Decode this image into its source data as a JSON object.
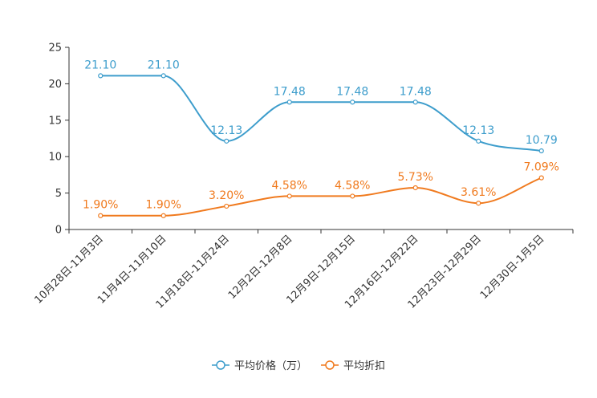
{
  "chart_data": {
    "type": "line",
    "categories": [
      "10月28日-11月3日",
      "11月4日-11月10日",
      "11月18日-11月24日",
      "12月2日-12月8日",
      "12月9日-12月15日",
      "12月16日-12月22日",
      "12月23日-12月29日",
      "12月30日-1月5日"
    ],
    "ylim": [
      0,
      25
    ],
    "yticks": [
      "0",
      "5",
      "10",
      "15",
      "20",
      "25"
    ],
    "series": [
      {
        "name": "平均价格（万）",
        "values": [
          21.1,
          21.1,
          12.13,
          17.48,
          17.48,
          17.48,
          12.13,
          10.79
        ],
        "labels": [
          "21.10",
          "21.10",
          "12.13",
          "17.48",
          "17.48",
          "17.48",
          "12.13",
          "10.79"
        ],
        "color": "#3d9dcc"
      },
      {
        "name": "平均折扣",
        "values": [
          1.9,
          1.9,
          3.2,
          4.58,
          4.58,
          5.73,
          3.61,
          7.09
        ],
        "labels": [
          "1.90%",
          "1.90%",
          "3.20%",
          "4.58%",
          "4.58%",
          "5.73%",
          "3.61%",
          "7.09%"
        ],
        "color": "#f07a1e"
      }
    ],
    "legend_position": "bottom-center",
    "grid": false
  }
}
